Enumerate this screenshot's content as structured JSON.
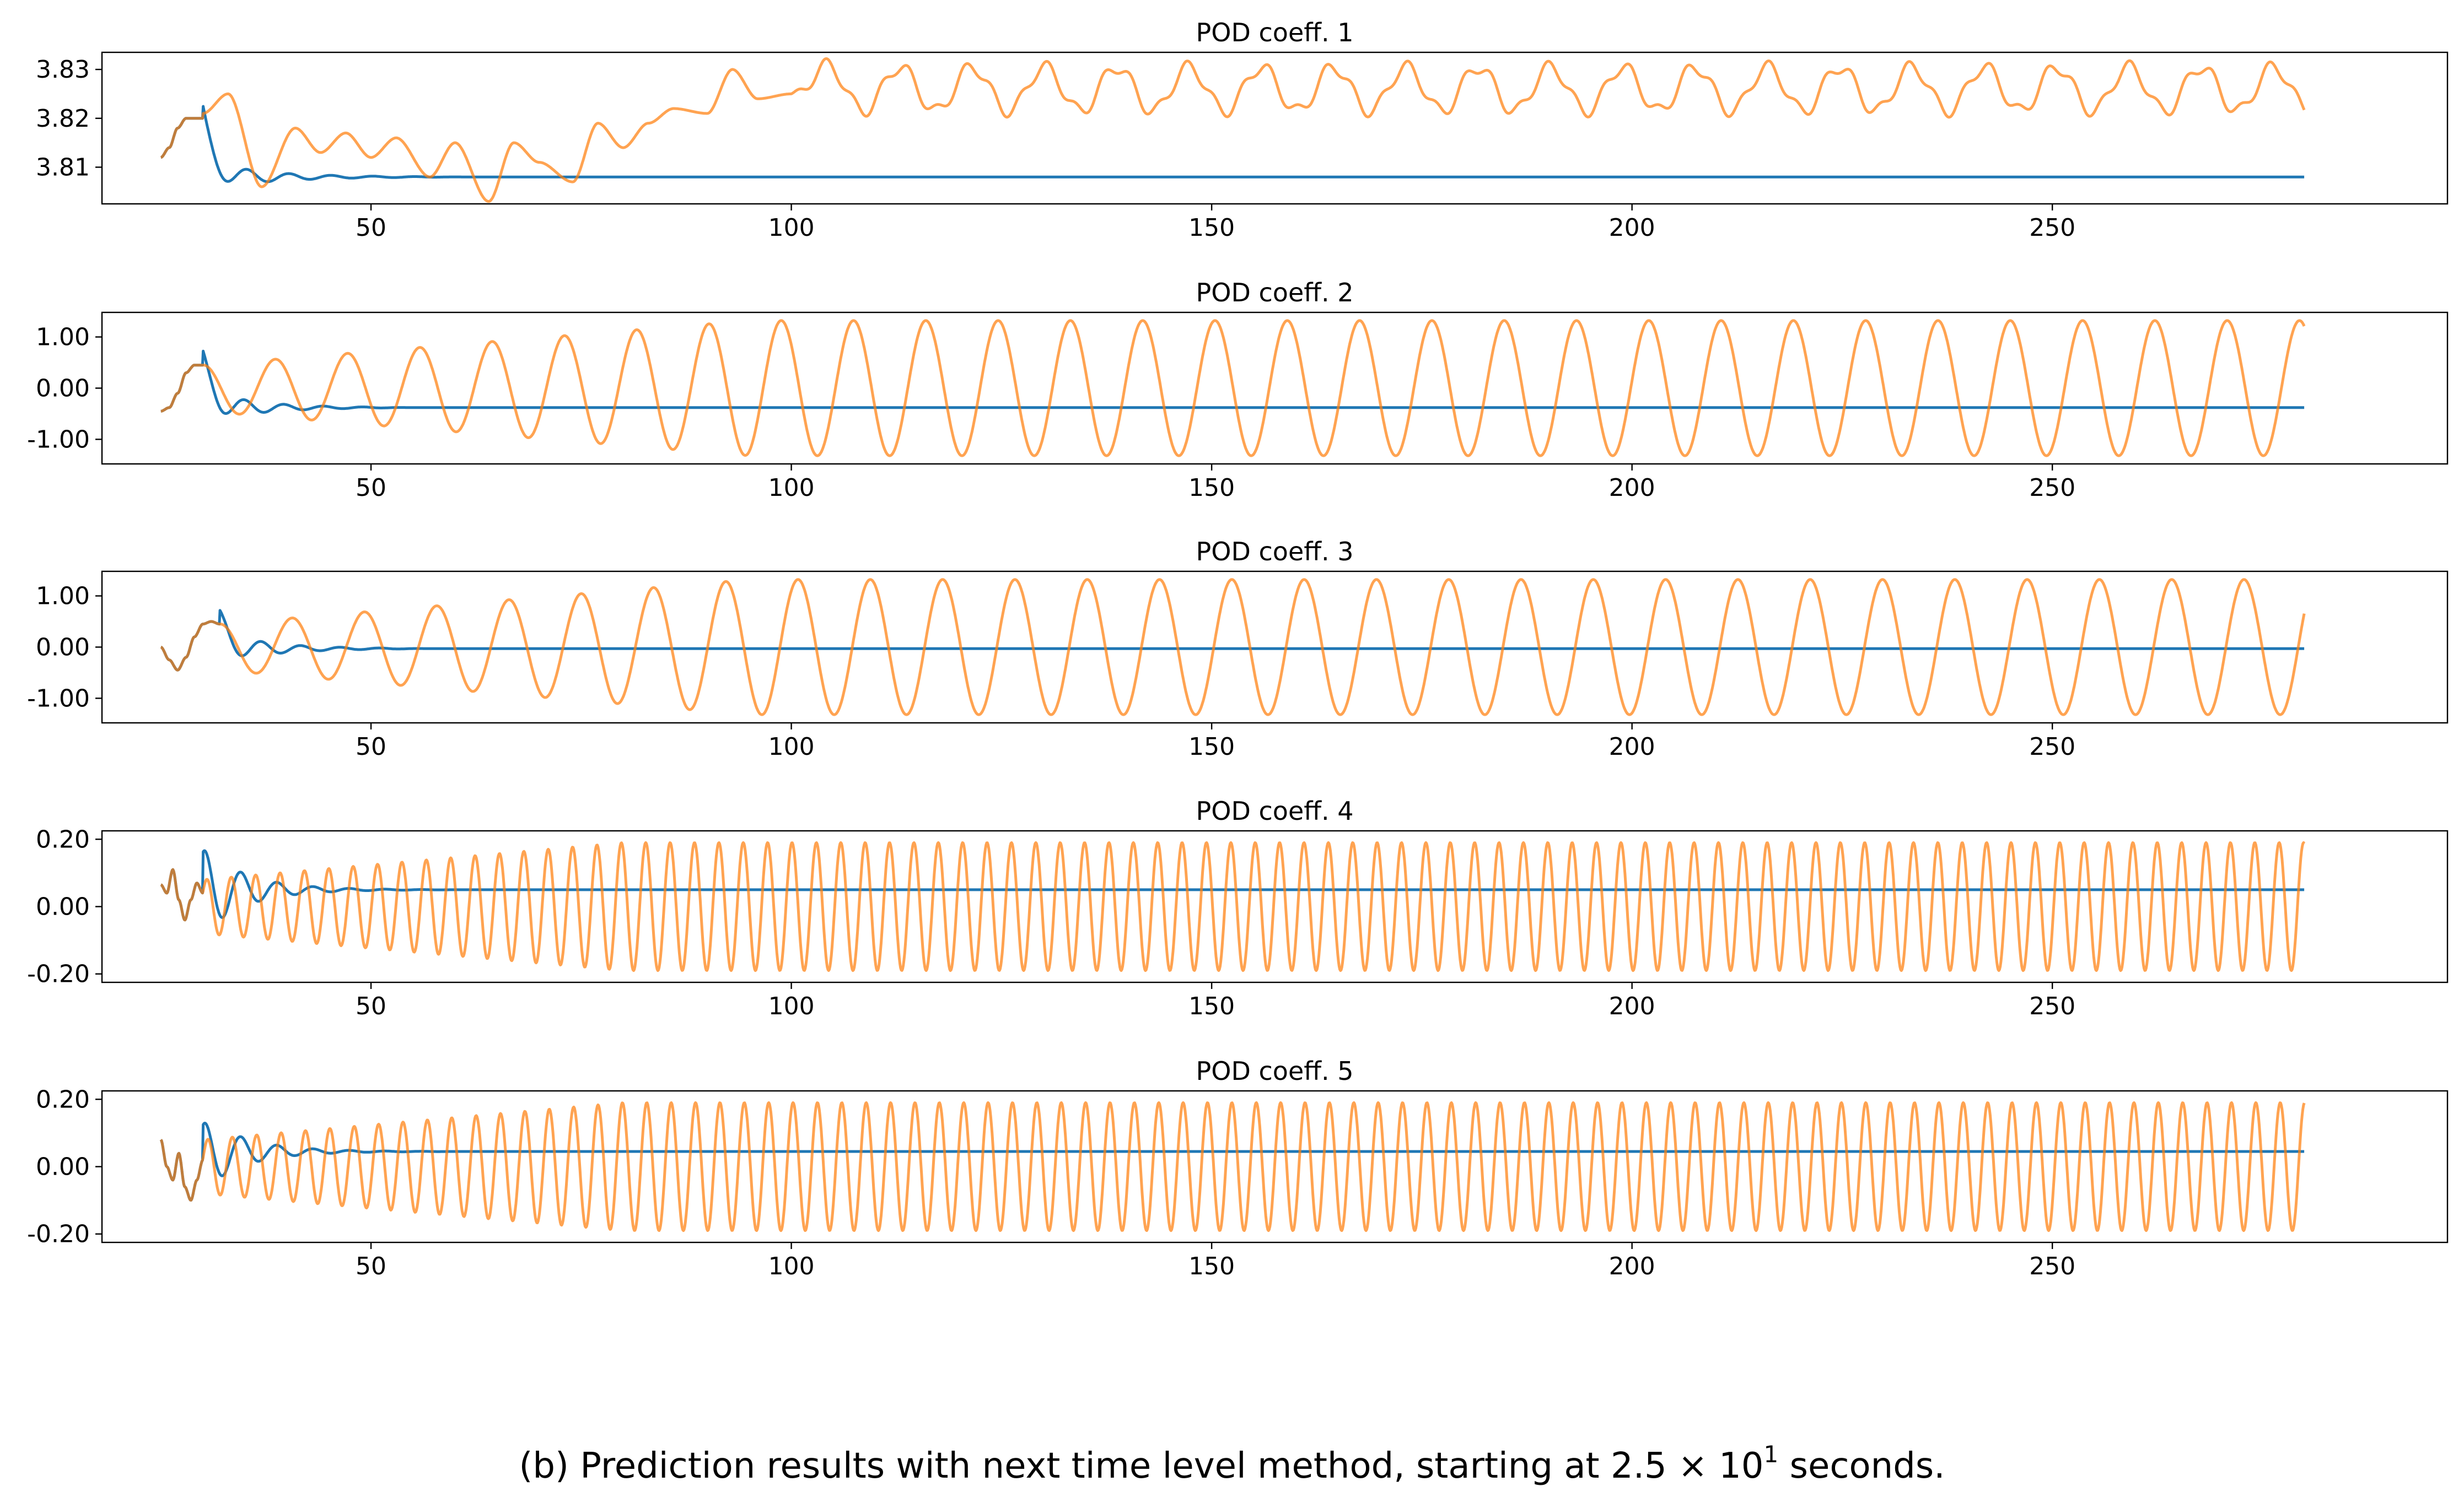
{
  "caption": {
    "prefix": "(b) Prediction results with next time level method, starting at 2.5 × 10",
    "exponent": "1",
    "suffix": " seconds."
  },
  "chart_data": {
    "type": "line",
    "colors": {
      "series_a": "#1f77b4",
      "series_b": "#ff7f0e",
      "axes": "#000000"
    },
    "xlim": [
      18,
      297
    ],
    "x_ticks": [
      50,
      100,
      150,
      200,
      250
    ],
    "x_tick_labels": [
      "50",
      "100",
      "150",
      "200",
      "250"
    ],
    "x_start": 25,
    "x_end": 280,
    "panels": [
      {
        "title": "POD coeff. 1",
        "ylim": [
          3.8025,
          3.8335
        ],
        "y_ticks": [
          3.81,
          3.82,
          3.83
        ],
        "y_tick_labels": [
          "3.81",
          "3.82",
          "3.83"
        ],
        "shared_initial": {
          "x_end": 30,
          "values": [
            3.812,
            3.814,
            3.818,
            3.82,
            3.82,
            3.82
          ]
        },
        "series": [
          {
            "name": "series A (blue)",
            "steady_value": 3.808,
            "transient": {
              "x_end": 62,
              "amplitude": 0.003,
              "period": 5,
              "decay": 7
            }
          },
          {
            "name": "series B (orange)",
            "samples": [
              {
                "x": 30,
                "y": 3.821
              },
              {
                "x": 33,
                "y": 3.825
              },
              {
                "x": 37,
                "y": 3.806
              },
              {
                "x": 41,
                "y": 3.818
              },
              {
                "x": 44,
                "y": 3.813
              },
              {
                "x": 47,
                "y": 3.817
              },
              {
                "x": 50,
                "y": 3.812
              },
              {
                "x": 53,
                "y": 3.816
              },
              {
                "x": 57,
                "y": 3.808
              },
              {
                "x": 60,
                "y": 3.815
              },
              {
                "x": 64,
                "y": 3.803
              },
              {
                "x": 67,
                "y": 3.815
              },
              {
                "x": 70,
                "y": 3.811
              },
              {
                "x": 74,
                "y": 3.807
              },
              {
                "x": 77,
                "y": 3.819
              },
              {
                "x": 80,
                "y": 3.814
              },
              {
                "x": 83,
                "y": 3.819
              },
              {
                "x": 86,
                "y": 3.822
              },
              {
                "x": 90,
                "y": 3.821
              },
              {
                "x": 93,
                "y": 3.83
              },
              {
                "x": 96,
                "y": 3.824
              },
              {
                "x": 100,
                "y": 3.825
              }
            ],
            "periodic_tail": {
              "x_start": 100,
              "center": 3.826,
              "amplitude": 0.0045,
              "period": 8.6,
              "amplitude2": 0.0013,
              "period2": 3.3
            }
          }
        ]
      },
      {
        "title": "POD coeff. 2",
        "ylim": [
          -1.48,
          1.48
        ],
        "y_ticks": [
          -1.0,
          0.0,
          1.0
        ],
        "y_tick_labels": [
          "-1.00",
          "0.00",
          "1.00"
        ],
        "shared_initial": {
          "x_end": 30,
          "values": [
            -0.45,
            -0.38,
            -0.1,
            0.3,
            0.45,
            0.45
          ]
        },
        "series": [
          {
            "name": "series A (blue)",
            "steady_value": -0.38,
            "transient": {
              "x_end": 56,
              "amplitude": 0.32,
              "period": 4.7,
              "decay": 6
            }
          },
          {
            "name": "series B (orange)",
            "oscillation": {
              "x_start": 30,
              "center": 0.0,
              "amplitude_start": 0.45,
              "amplitude_end": 1.32,
              "ramp_end": 95,
              "period": 8.6
            }
          }
        ]
      },
      {
        "title": "POD coeff. 3",
        "ylim": [
          -1.48,
          1.48
        ],
        "y_ticks": [
          -1.0,
          0.0,
          1.0
        ],
        "y_tick_labels": [
          "-1.00",
          "0.00",
          "1.00"
        ],
        "shared_initial": {
          "x_end": 32,
          "values": [
            0.0,
            -0.25,
            -0.45,
            -0.2,
            0.2,
            0.45,
            0.5,
            0.45
          ]
        },
        "series": [
          {
            "name": "series A (blue)",
            "steady_value": -0.03,
            "transient": {
              "x_end": 58,
              "amplitude": 0.3,
              "period": 4.7,
              "decay": 6
            }
          },
          {
            "name": "series B (orange)",
            "oscillation": {
              "x_start": 32,
              "center": 0.0,
              "amplitude_start": 0.45,
              "amplitude_end": 1.32,
              "ramp_end": 95,
              "period": 8.6
            }
          }
        ]
      },
      {
        "title": "POD coeff. 4",
        "ylim": [
          -0.225,
          0.225
        ],
        "y_ticks": [
          -0.2,
          0.0,
          0.2
        ],
        "y_tick_labels": [
          "-0.20",
          "0.00",
          "0.20"
        ],
        "shared_initial": {
          "x_end": 30,
          "values": [
            0.065,
            0.04,
            0.11,
            0.02,
            -0.04,
            0.02,
            0.07,
            0.04
          ]
        },
        "series": [
          {
            "name": "series A (blue)",
            "steady_value": 0.05,
            "transient": {
              "x_end": 62,
              "amplitude": 0.13,
              "period": 4.3,
              "decay": 5
            }
          },
          {
            "name": "series B (orange)",
            "oscillation": {
              "x_start": 30,
              "center": 0.0,
              "amplitude_start": 0.08,
              "amplitude_end": 0.19,
              "ramp_end": 80,
              "period": 2.9
            }
          }
        ]
      },
      {
        "title": "POD coeff. 5",
        "ylim": [
          -0.225,
          0.225
        ],
        "y_ticks": [
          -0.2,
          0.0,
          0.2
        ],
        "y_tick_labels": [
          "-0.20",
          "0.00",
          "0.20"
        ],
        "shared_initial": {
          "x_end": 30,
          "values": [
            0.08,
            0.0,
            -0.04,
            0.04,
            -0.06,
            -0.1,
            -0.04,
            0.02
          ]
        },
        "series": [
          {
            "name": "series A (blue)",
            "steady_value": 0.045,
            "transient": {
              "x_end": 62,
              "amplitude": 0.11,
              "period": 4.3,
              "decay": 5
            }
          },
          {
            "name": "series B (orange)",
            "oscillation": {
              "x_start": 30,
              "center": 0.0,
              "amplitude_start": 0.08,
              "amplitude_end": 0.19,
              "ramp_end": 80,
              "period": 2.9
            }
          }
        ]
      }
    ]
  }
}
